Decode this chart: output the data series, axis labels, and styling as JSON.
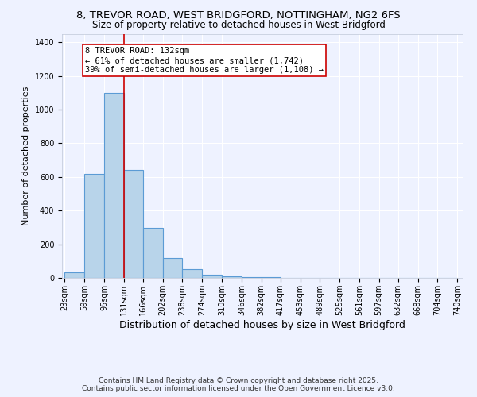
{
  "title_line1": "8, TREVOR ROAD, WEST BRIDGFORD, NOTTINGHAM, NG2 6FS",
  "title_line2": "Size of property relative to detached houses in West Bridgford",
  "xlabel": "Distribution of detached houses by size in West Bridgford",
  "ylabel": "Number of detached properties",
  "bar_edges": [
    23,
    59,
    95,
    131,
    166,
    202,
    238,
    274,
    310,
    346,
    382,
    417,
    453,
    489,
    525,
    561,
    597,
    632,
    668,
    704,
    740
  ],
  "bar_heights": [
    35,
    620,
    1100,
    640,
    295,
    120,
    50,
    20,
    10,
    5,
    3,
    2,
    2,
    2,
    2,
    2,
    2,
    1,
    1,
    1
  ],
  "bar_color": "#b8d4ea",
  "bar_edge_color": "#5b9bd5",
  "bar_linewidth": 0.8,
  "vline_x": 131,
  "vline_color": "#cc0000",
  "vline_linewidth": 1.2,
  "annotation_text": "8 TREVOR ROAD: 132sqm\n← 61% of detached houses are smaller (1,742)\n39% of semi-detached houses are larger (1,108) →",
  "annotation_box_color": "#ffffff",
  "annotation_box_edge": "#cc0000",
  "ylim": [
    0,
    1450
  ],
  "yticks": [
    0,
    200,
    400,
    600,
    800,
    1000,
    1200,
    1400
  ],
  "background_color": "#eef2ff",
  "grid_color": "#ffffff",
  "title_fontsize": 9.5,
  "subtitle_fontsize": 8.5,
  "ylabel_fontsize": 8,
  "xlabel_fontsize": 9,
  "tick_fontsize": 7,
  "annotation_fontsize": 7.5,
  "footer_line1": "Contains HM Land Registry data © Crown copyright and database right 2025.",
  "footer_line2": "Contains public sector information licensed under the Open Government Licence v3.0.",
  "footer_fontsize": 6.5
}
